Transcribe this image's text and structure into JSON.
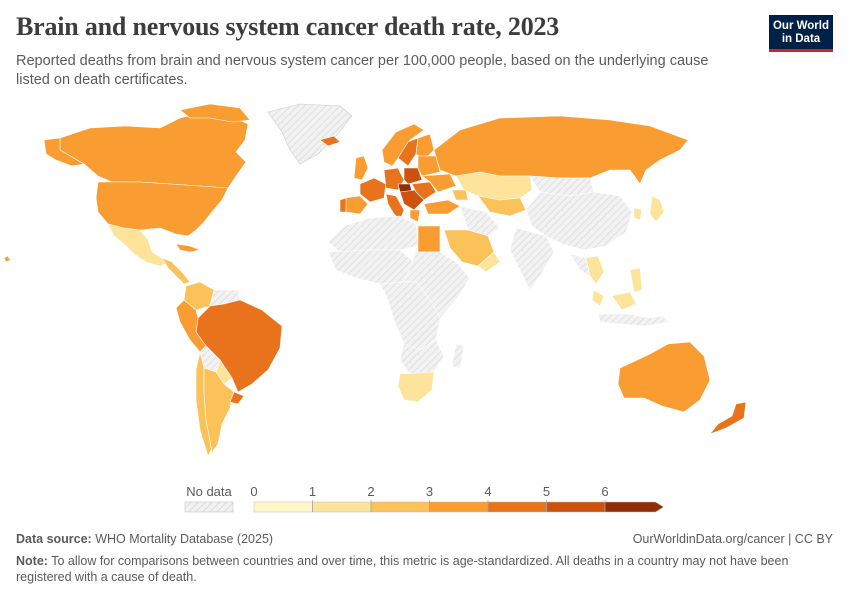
{
  "header": {
    "title": "Brain and nervous system cancer death rate, 2023",
    "subtitle": "Reported deaths from brain and nervous system cancer per 100,000 people, based on the underlying cause listed on death certificates.",
    "logo_line1": "Our World",
    "logo_line2": "in Data"
  },
  "legend": {
    "no_data_label": "No data",
    "ticks": [
      "0",
      "1",
      "2",
      "3",
      "4",
      "5",
      "6"
    ],
    "colors": [
      "#fef7c8",
      "#fde49a",
      "#fcc25a",
      "#f99d33",
      "#e9731c",
      "#cc520d",
      "#8f2f07"
    ]
  },
  "footer": {
    "source_label": "Data source:",
    "source_value": "WHO Mortality Database (2025)",
    "site": "OurWorldinData.org/cancer | CC BY",
    "note_label": "Note:",
    "note_text": "To allow for comparisons between countries and over time, this metric is age-standardized. All deaths in a country may not have been registered with a cause of death."
  },
  "colors": {
    "no_data_fill": "#eeeeee",
    "border": "#ffffff"
  }
}
